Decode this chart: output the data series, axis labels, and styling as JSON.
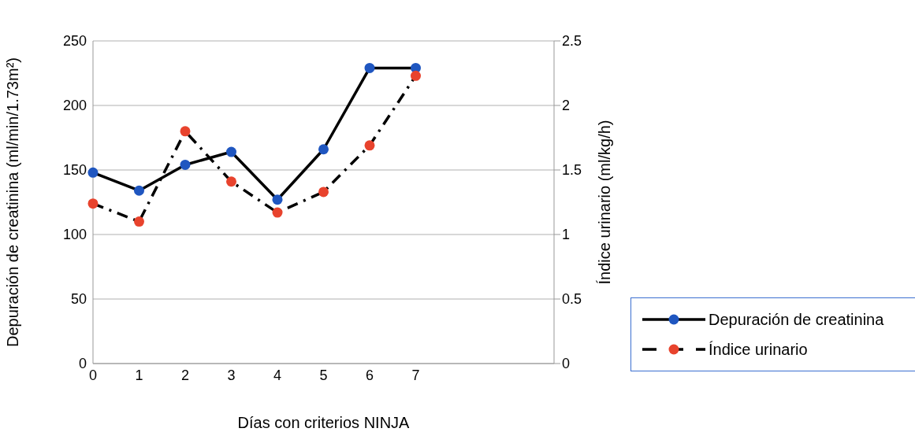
{
  "chart_data": {
    "type": "line",
    "xlabel": "Días con criterios NINJA",
    "ylabel": "Depuración de creatinina (ml/min/1.73m²)",
    "y2label": "Índice urinario (ml/kg/h)",
    "categories": [
      "0",
      "1",
      "2",
      "3",
      "4",
      "5",
      "6",
      "7",
      null,
      null,
      null
    ],
    "series": [
      {
        "name": "Depuración de creatinina",
        "color": "#1f56c0",
        "line_style": "solid",
        "values": [
          148,
          134,
          154,
          164,
          127,
          166,
          229,
          229,
          null,
          null,
          null
        ]
      },
      {
        "name": "Índice urinario",
        "color": "#e8432d",
        "line_style": "dashed",
        "axis": "y2",
        "values": [
          1.24,
          1.1,
          1.8,
          1.41,
          1.17,
          1.33,
          1.69,
          2.23,
          null,
          null,
          null
        ]
      }
    ],
    "ylim": [
      0,
      250
    ],
    "yticks": [
      0,
      50,
      100,
      150,
      200,
      250
    ],
    "y2lim": [
      0,
      2.5
    ],
    "y2ticks": [
      0,
      0.5,
      1,
      1.5,
      2,
      2.5
    ],
    "grid": "y",
    "legend": "bottom right",
    "marker": "circle"
  }
}
